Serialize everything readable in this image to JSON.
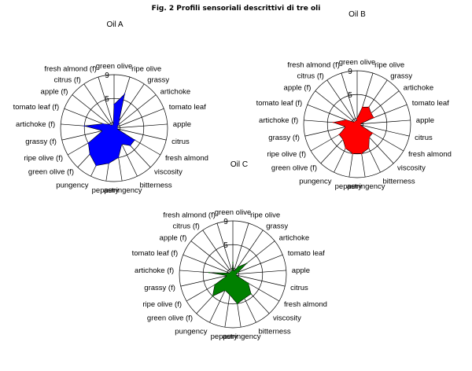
{
  "figure": {
    "title": "Fig. 2 Profili sensoriali descrittivi di tre oli"
  },
  "chart_data": [
    {
      "type": "radar",
      "title": "Oil A",
      "color": "#0000ff",
      "rmax": 9,
      "ticks": [
        "5",
        "9"
      ],
      "categories": [
        "green olive",
        "ripe olive",
        "grassy",
        "artichoke",
        "tomato leaf",
        "apple",
        "citrus",
        "fresh almond",
        "viscosity",
        "bitterness",
        "astringency",
        "peppery",
        "pungency",
        "green olive (f)",
        "ripe olive (f)",
        "grassy (f)",
        "artichoke (f)",
        "tomato leaf (f)",
        "apple (f)",
        "citrus (f)",
        "fresh almond (f)"
      ],
      "values": [
        4,
        6,
        1.5,
        1,
        0.5,
        0.5,
        0.5,
        4,
        4,
        3,
        5,
        6,
        7,
        6,
        5,
        2,
        5,
        2,
        1,
        0.5,
        0.5
      ]
    },
    {
      "type": "radar",
      "title": "Oil B",
      "color": "#ff0000",
      "rmax": 9,
      "ticks": [
        "5",
        "9"
      ],
      "categories": [
        "green olive",
        "ripe olive",
        "grassy",
        "artichoke",
        "tomato leaf",
        "apple",
        "citrus",
        "fresh almond",
        "viscosity",
        "bitterness",
        "astringency",
        "peppery",
        "pungency",
        "green olive (f)",
        "ripe olive (f)",
        "grassy (f)",
        "artichoke (f)",
        "tomato leaf (f)",
        "apple (f)",
        "citrus (f)",
        "fresh almond (f)"
      ],
      "values": [
        1,
        3,
        3.5,
        3,
        3,
        0.5,
        0.5,
        3,
        3,
        4.5,
        5,
        5,
        4.5,
        3.5,
        3.5,
        2,
        4,
        2,
        0.5,
        0.5,
        0.5
      ]
    },
    {
      "type": "radar",
      "title": "Oil C",
      "color": "#008000",
      "rmax": 9,
      "ticks": [
        "5",
        "9"
      ],
      "categories": [
        "green olive",
        "ripe olive",
        "grassy",
        "artichoke",
        "tomato leaf",
        "apple",
        "citrus",
        "fresh almond",
        "viscosity",
        "bitterness",
        "astringency",
        "peppery",
        "pungency",
        "green olive (f)",
        "ripe olive (f)",
        "grassy (f)",
        "artichoke (f)",
        "tomato leaf (f)",
        "apple (f)",
        "citrus (f)",
        "fresh almond (f)"
      ],
      "values": [
        2,
        0.5,
        1.5,
        3,
        1,
        0.5,
        0.5,
        3,
        4.5,
        4.5,
        5,
        3.5,
        3,
        5,
        3.5,
        1,
        4,
        0.5,
        0.5,
        0.5,
        0.5
      ]
    }
  ]
}
